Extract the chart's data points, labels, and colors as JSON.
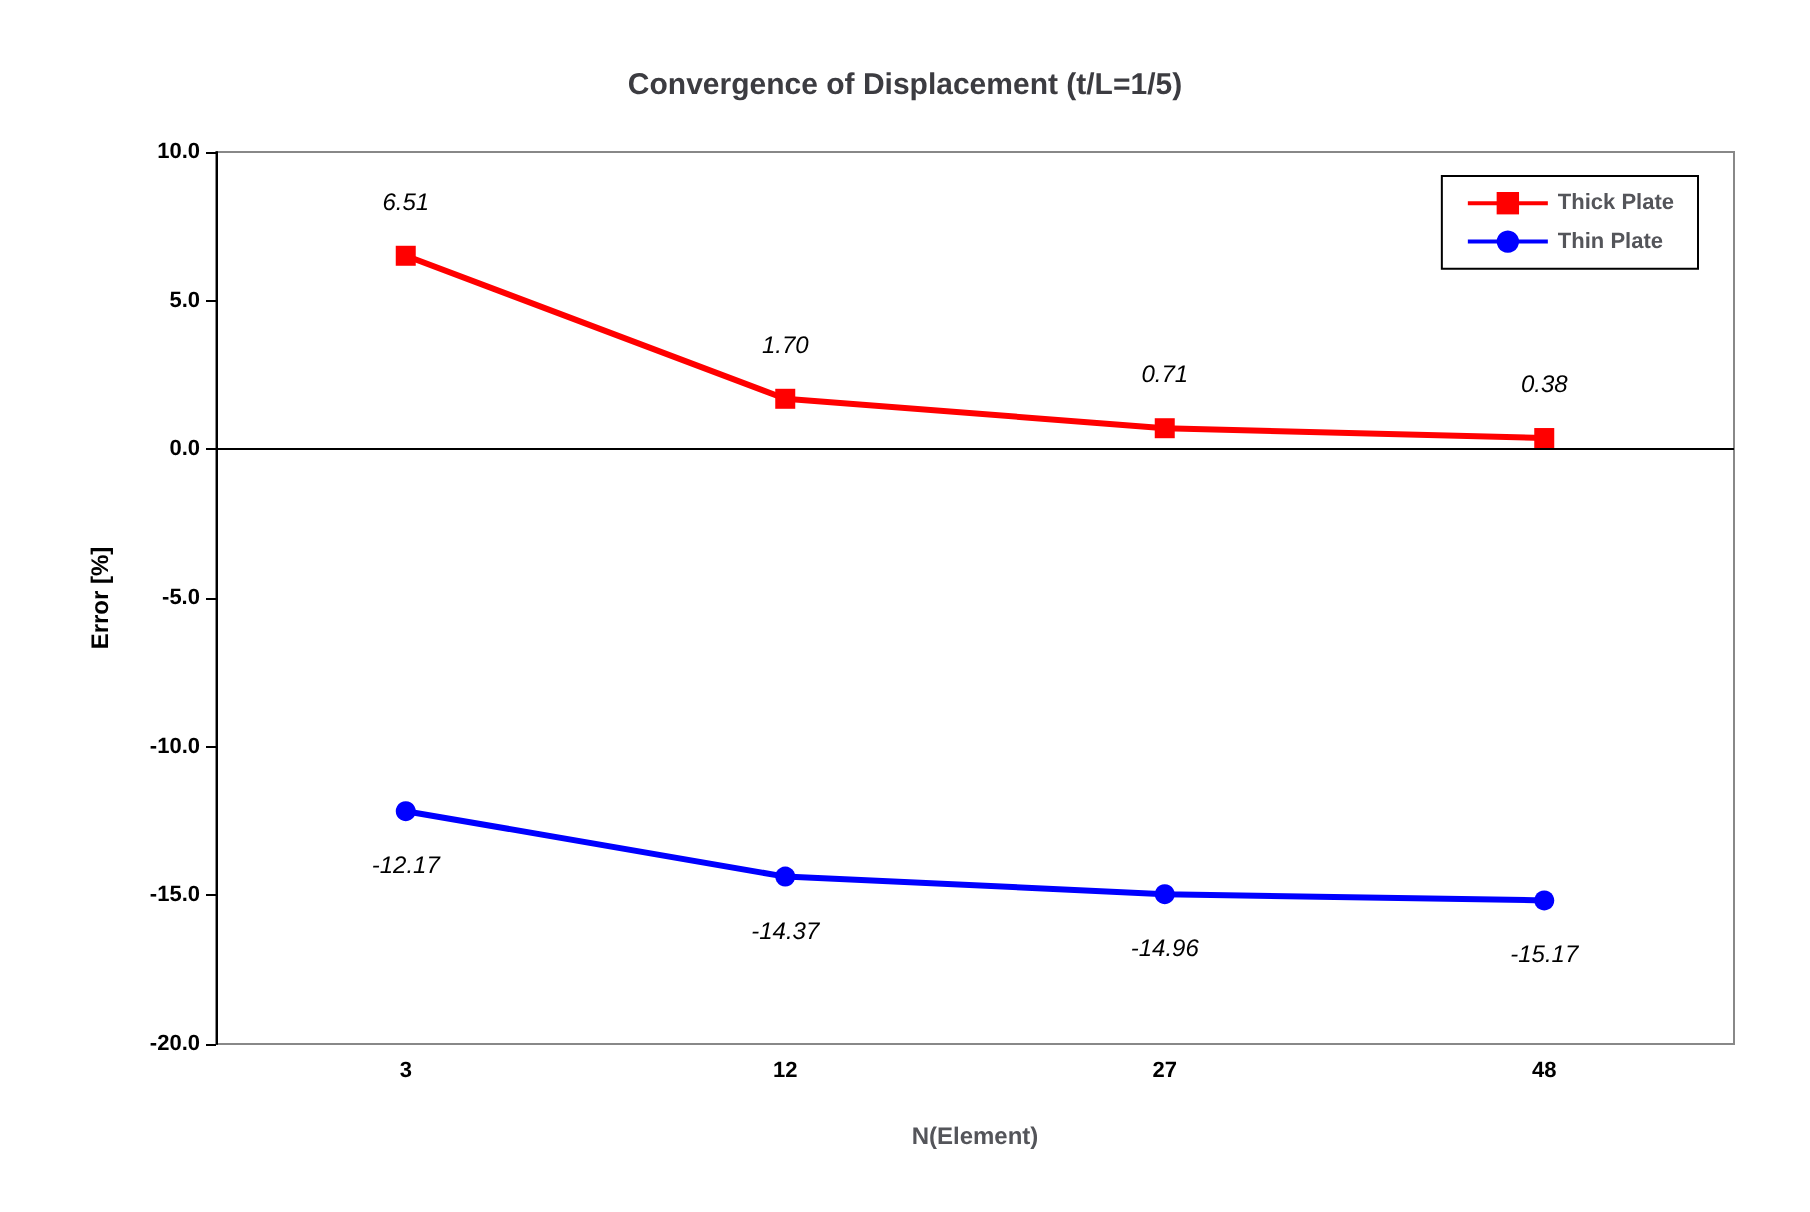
{
  "chart_data": {
    "type": "line",
    "title": "Convergence of Displacement (t/L=1/5)",
    "xlabel": "N(Element)",
    "ylabel": "Error [%]",
    "categories": [
      "3",
      "12",
      "27",
      "48"
    ],
    "series": [
      {
        "name": "Thick Plate",
        "color": "#ff0000",
        "marker": "square",
        "values": [
          6.51,
          1.7,
          0.71,
          0.38
        ],
        "value_labels": [
          "6.51",
          "1.70",
          "0.71",
          "0.38"
        ]
      },
      {
        "name": "Thin Plate",
        "color": "#0000ff",
        "marker": "circle",
        "values": [
          -12.17,
          -14.37,
          -14.96,
          -15.17
        ],
        "value_labels": [
          "-12.17",
          "-14.37",
          "-14.96",
          "-15.17"
        ]
      }
    ],
    "ylim": [
      -20,
      10
    ],
    "yticks": [
      {
        "value": -20,
        "label": "-20.0"
      },
      {
        "value": -15,
        "label": "-15.0"
      },
      {
        "value": -10,
        "label": "-10.0"
      },
      {
        "value": -5,
        "label": "-5.0"
      },
      {
        "value": 0,
        "label": "0.0"
      },
      {
        "value": 5,
        "label": "5.0"
      },
      {
        "value": 10,
        "label": "10.0"
      }
    ],
    "ref_lines": [
      {
        "axis": "y",
        "value": 0,
        "color": "#000000"
      }
    ],
    "grid": false,
    "legend": "top right"
  }
}
